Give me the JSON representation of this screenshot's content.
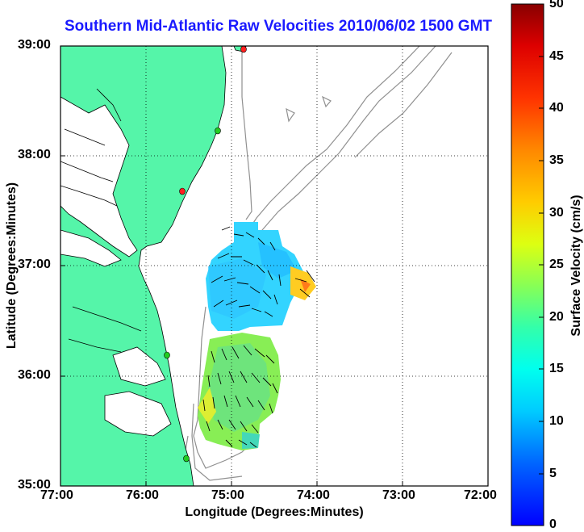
{
  "title": "Southern Mid-Atlantic Raw Velocities 2010/06/02 1500 GMT",
  "x_axis_label": "Longitude (Degrees:Minutes)",
  "y_axis_label": "Latitude (Degrees:Minutes)",
  "colorbar_label": "Surface Velocity (cm/s)",
  "x_ticks": [
    "77:00",
    "76:00",
    "75:00",
    "74:00",
    "73:00",
    "72:00"
  ],
  "y_ticks": [
    "39:00",
    "38:00",
    "37:00",
    "36:00",
    "35:00"
  ],
  "colorbar_ticks": [
    "50",
    "45",
    "40",
    "35",
    "30",
    "25",
    "20",
    "15",
    "10",
    "5",
    "0"
  ],
  "colors": {
    "land": "#55f5a9",
    "coastline": "#000000",
    "bathymetry": "#909090",
    "title": "#1a1aff",
    "station_red": "#ff2020",
    "station_green": "#22cc22"
  },
  "chart_data": {
    "type": "map-vector-field",
    "xlim": [
      -77,
      -72
    ],
    "ylim": [
      35,
      39
    ],
    "colorbar_range": [
      0,
      50
    ],
    "grid": true
  }
}
